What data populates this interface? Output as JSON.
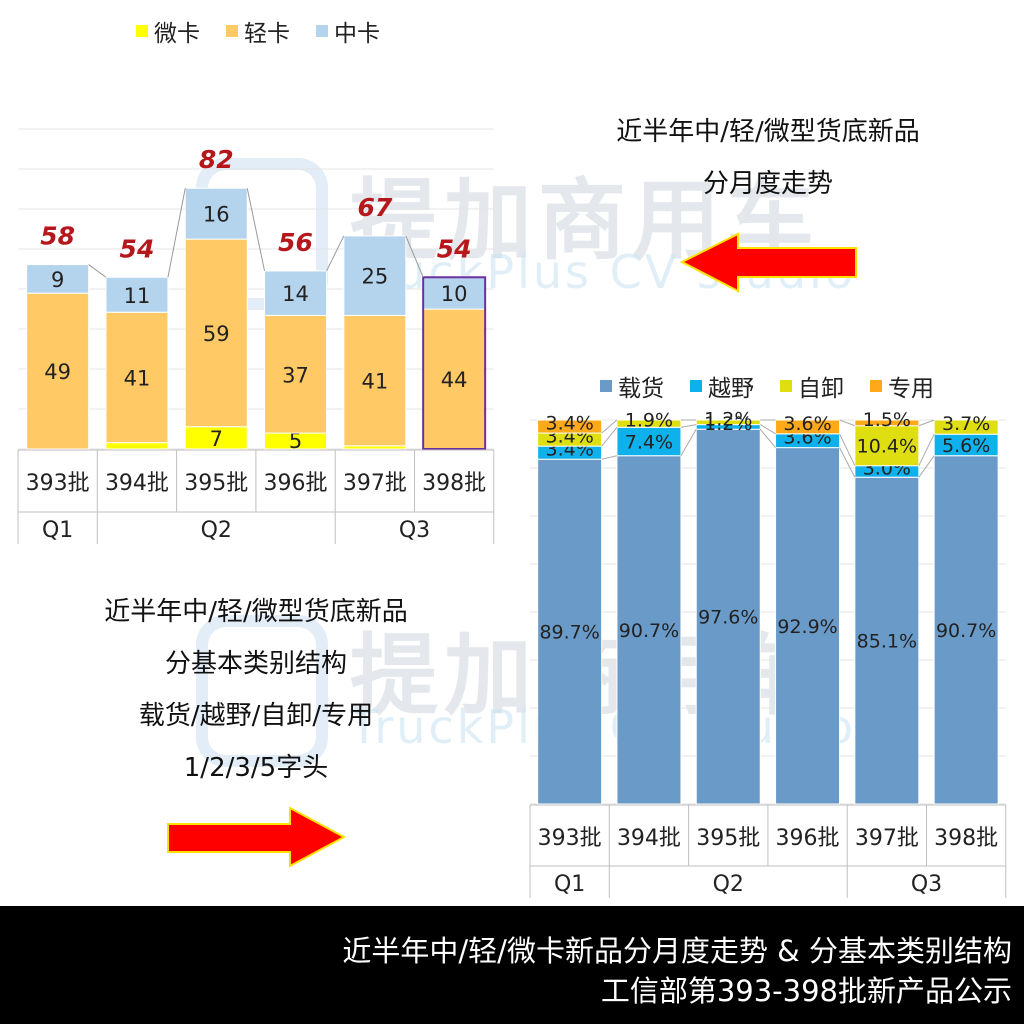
{
  "chart_data": [
    {
      "type": "bar",
      "stacked": true,
      "categories": [
        "393批",
        "394批",
        "395批",
        "396批",
        "397批",
        "398批"
      ],
      "quarters": [
        {
          "label": "Q1",
          "span": [
            0,
            0
          ]
        },
        {
          "label": "Q2",
          "span": [
            1,
            3
          ]
        },
        {
          "label": "Q3",
          "span": [
            4,
            5
          ]
        }
      ],
      "series": [
        {
          "name": "微卡",
          "color": "#ffff00",
          "values": [
            null,
            2,
            7,
            5,
            1,
            null
          ]
        },
        {
          "name": "轻卡",
          "color": "#ffc966",
          "values": [
            49,
            41,
            59,
            37,
            41,
            44
          ]
        },
        {
          "name": "中卡",
          "color": "#b4d4ee",
          "values": [
            9,
            11,
            16,
            14,
            25,
            10
          ]
        }
      ],
      "totals": [
        58,
        54,
        82,
        56,
        67,
        54
      ],
      "legend": "top"
    },
    {
      "type": "bar",
      "stacked": true,
      "percent": true,
      "categories": [
        "393批",
        "394批",
        "395批",
        "396批",
        "397批",
        "398批"
      ],
      "quarters": [
        {
          "label": "Q1",
          "span": [
            0,
            0
          ]
        },
        {
          "label": "Q2",
          "span": [
            1,
            3
          ]
        },
        {
          "label": "Q3",
          "span": [
            4,
            5
          ]
        }
      ],
      "series": [
        {
          "name": "载货",
          "color": "#6a9bc8",
          "values": [
            89.7,
            90.7,
            97.6,
            92.9,
            85.1,
            90.7
          ],
          "labels": [
            "89.7%",
            "90.7%",
            "97.6%",
            "92.9%",
            "85.1%",
            "90.7%"
          ]
        },
        {
          "name": "越野",
          "color": "#0fb1ec",
          "values": [
            3.4,
            7.4,
            1.2,
            3.6,
            3.0,
            5.6
          ],
          "labels": [
            "3.4%",
            "7.4%",
            "1.2%",
            "3.6%",
            "3.0%",
            "5.6%"
          ]
        },
        {
          "name": "自卸",
          "color": "#dede10",
          "values": [
            3.4,
            1.9,
            1.2,
            0,
            10.4,
            3.7
          ],
          "labels": [
            "3.4%",
            "1.9%",
            "1.2%",
            "",
            "10.4%",
            "3.7%"
          ]
        },
        {
          "name": "专用",
          "color": "#ffa81a",
          "values": [
            3.4,
            0,
            0,
            3.6,
            1.5,
            0
          ],
          "labels": [
            "3.4%",
            "",
            "",
            "3.6%",
            "1.5%",
            ""
          ]
        }
      ],
      "legend": "top"
    }
  ],
  "text": {
    "note_top": [
      "近半年中/轻/微型货底新品",
      "分月度走势"
    ],
    "note_mid": [
      "近半年中/轻/微型货底新品",
      "分基本类别结构",
      "载货/越野/自卸/专用",
      "1/2/3/5字头"
    ],
    "footer_line1": "近半年中/轻/微卡新品分月度走势 & 分基本类别结构",
    "footer_line2": "工信部第393-398批新产品公示",
    "watermark_cn": "提加商用车",
    "watermark_en": "TruckPlus CV studio"
  },
  "colors": {
    "total_label": "#b5171b",
    "arrow": "#ff0000",
    "arrow_glow": "#ffe000",
    "highlight_border": "#6b2fa0"
  }
}
